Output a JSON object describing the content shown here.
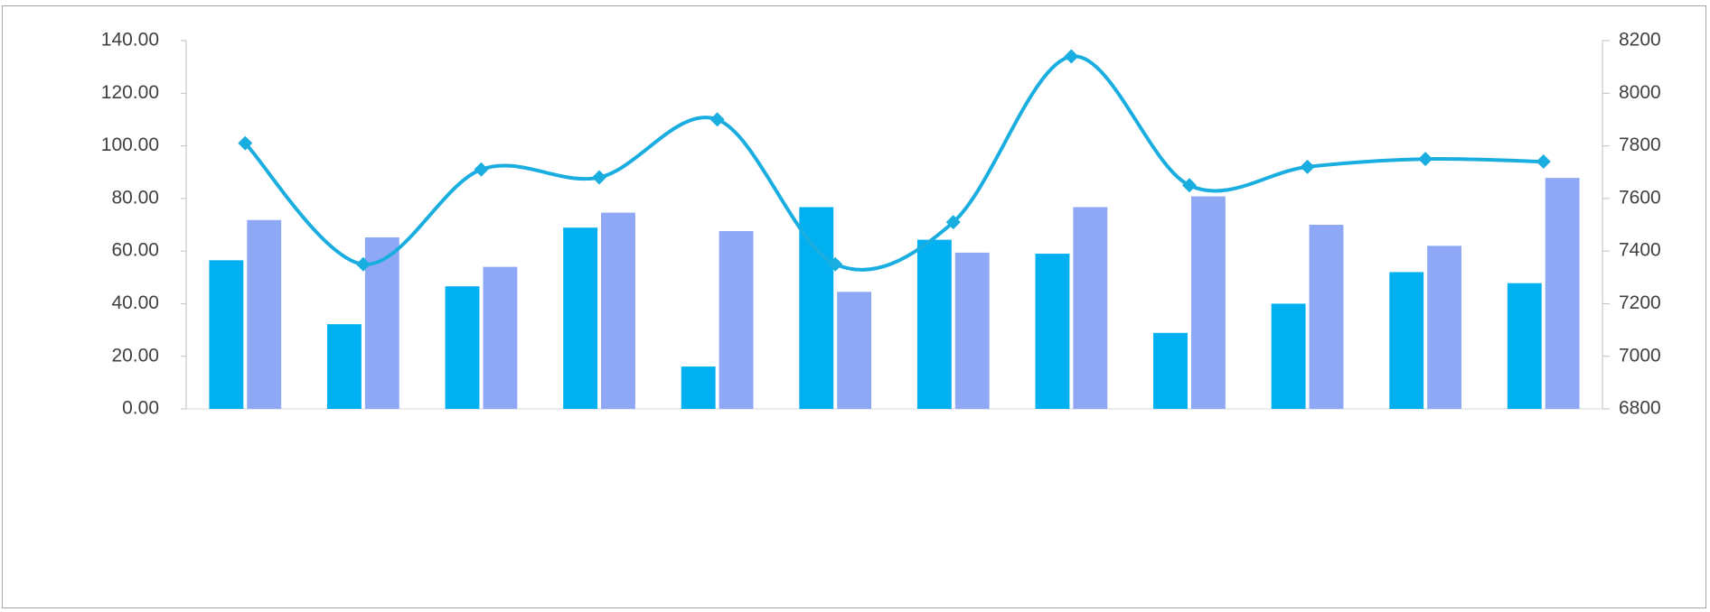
{
  "chart_data": {
    "type": "bar-line",
    "categories": [
      null,
      null,
      null,
      null,
      null,
      null,
      null,
      null,
      null,
      null,
      null,
      null
    ],
    "series": [
      {
        "type": "bar",
        "color": "#00b0f0",
        "axis": "y2",
        "values": [
          7365,
          7122,
          7266,
          7489,
          6961,
          7567,
          7443,
          7390,
          7089,
          7200,
          7320,
          7278
        ]
      },
      {
        "type": "bar",
        "color": "#8fa8f5",
        "axis": "y2",
        "values": [
          7518,
          7452,
          7340,
          7546,
          7476,
          7245,
          7394,
          7567,
          7608,
          7500,
          7420,
          7678
        ]
      },
      {
        "type": "line",
        "color": "#1aaee0",
        "axis": "y",
        "values": [
          101,
          55,
          91,
          88,
          110,
          55,
          71,
          134,
          85,
          92,
          95,
          94
        ]
      }
    ],
    "ylim": [
      0,
      140
    ],
    "yticks": [
      {
        "value": 0,
        "label": "0.00"
      },
      {
        "value": 20,
        "label": "20.00"
      },
      {
        "value": 40,
        "label": "40.00"
      },
      {
        "value": 60,
        "label": "60.00"
      },
      {
        "value": 80,
        "label": "80.00"
      },
      {
        "value": 100,
        "label": "100.00"
      },
      {
        "value": 120,
        "label": "120.00"
      },
      {
        "value": 140,
        "label": "140.00"
      }
    ],
    "y2lim": [
      6800,
      8200
    ],
    "y2ticks": [
      6800,
      7000,
      7200,
      7400,
      7600,
      7800,
      8000,
      8200
    ]
  }
}
